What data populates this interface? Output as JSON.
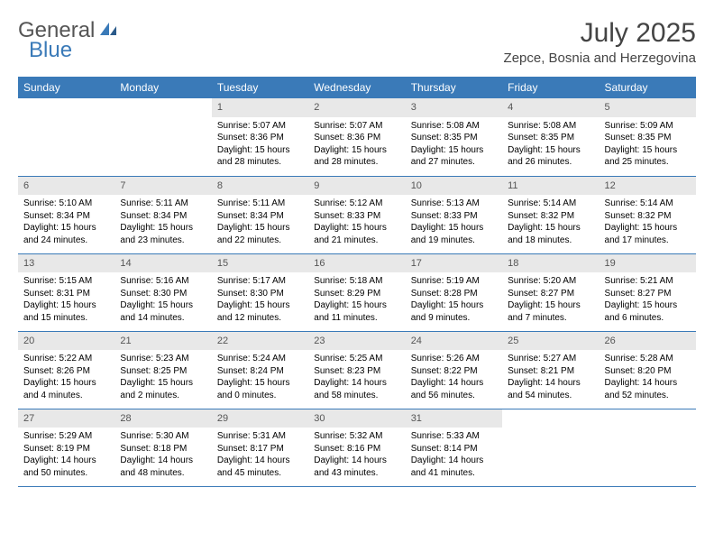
{
  "logo": {
    "text1": "General",
    "text2": "Blue"
  },
  "title": "July 2025",
  "location": "Zepce, Bosnia and Herzegovina",
  "colors": {
    "header_bg": "#3a7ab8",
    "header_text": "#ffffff",
    "daynum_bg": "#e8e8e8",
    "daynum_text": "#555555",
    "logo_gray": "#555555",
    "logo_blue": "#3a7ab8"
  },
  "weekdays": [
    "Sunday",
    "Monday",
    "Tuesday",
    "Wednesday",
    "Thursday",
    "Friday",
    "Saturday"
  ],
  "weeks": [
    [
      {
        "n": "",
        "sr": "",
        "ss": "",
        "dl": ""
      },
      {
        "n": "",
        "sr": "",
        "ss": "",
        "dl": ""
      },
      {
        "n": "1",
        "sr": "Sunrise: 5:07 AM",
        "ss": "Sunset: 8:36 PM",
        "dl": "Daylight: 15 hours and 28 minutes."
      },
      {
        "n": "2",
        "sr": "Sunrise: 5:07 AM",
        "ss": "Sunset: 8:36 PM",
        "dl": "Daylight: 15 hours and 28 minutes."
      },
      {
        "n": "3",
        "sr": "Sunrise: 5:08 AM",
        "ss": "Sunset: 8:35 PM",
        "dl": "Daylight: 15 hours and 27 minutes."
      },
      {
        "n": "4",
        "sr": "Sunrise: 5:08 AM",
        "ss": "Sunset: 8:35 PM",
        "dl": "Daylight: 15 hours and 26 minutes."
      },
      {
        "n": "5",
        "sr": "Sunrise: 5:09 AM",
        "ss": "Sunset: 8:35 PM",
        "dl": "Daylight: 15 hours and 25 minutes."
      }
    ],
    [
      {
        "n": "6",
        "sr": "Sunrise: 5:10 AM",
        "ss": "Sunset: 8:34 PM",
        "dl": "Daylight: 15 hours and 24 minutes."
      },
      {
        "n": "7",
        "sr": "Sunrise: 5:11 AM",
        "ss": "Sunset: 8:34 PM",
        "dl": "Daylight: 15 hours and 23 minutes."
      },
      {
        "n": "8",
        "sr": "Sunrise: 5:11 AM",
        "ss": "Sunset: 8:34 PM",
        "dl": "Daylight: 15 hours and 22 minutes."
      },
      {
        "n": "9",
        "sr": "Sunrise: 5:12 AM",
        "ss": "Sunset: 8:33 PM",
        "dl": "Daylight: 15 hours and 21 minutes."
      },
      {
        "n": "10",
        "sr": "Sunrise: 5:13 AM",
        "ss": "Sunset: 8:33 PM",
        "dl": "Daylight: 15 hours and 19 minutes."
      },
      {
        "n": "11",
        "sr": "Sunrise: 5:14 AM",
        "ss": "Sunset: 8:32 PM",
        "dl": "Daylight: 15 hours and 18 minutes."
      },
      {
        "n": "12",
        "sr": "Sunrise: 5:14 AM",
        "ss": "Sunset: 8:32 PM",
        "dl": "Daylight: 15 hours and 17 minutes."
      }
    ],
    [
      {
        "n": "13",
        "sr": "Sunrise: 5:15 AM",
        "ss": "Sunset: 8:31 PM",
        "dl": "Daylight: 15 hours and 15 minutes."
      },
      {
        "n": "14",
        "sr": "Sunrise: 5:16 AM",
        "ss": "Sunset: 8:30 PM",
        "dl": "Daylight: 15 hours and 14 minutes."
      },
      {
        "n": "15",
        "sr": "Sunrise: 5:17 AM",
        "ss": "Sunset: 8:30 PM",
        "dl": "Daylight: 15 hours and 12 minutes."
      },
      {
        "n": "16",
        "sr": "Sunrise: 5:18 AM",
        "ss": "Sunset: 8:29 PM",
        "dl": "Daylight: 15 hours and 11 minutes."
      },
      {
        "n": "17",
        "sr": "Sunrise: 5:19 AM",
        "ss": "Sunset: 8:28 PM",
        "dl": "Daylight: 15 hours and 9 minutes."
      },
      {
        "n": "18",
        "sr": "Sunrise: 5:20 AM",
        "ss": "Sunset: 8:27 PM",
        "dl": "Daylight: 15 hours and 7 minutes."
      },
      {
        "n": "19",
        "sr": "Sunrise: 5:21 AM",
        "ss": "Sunset: 8:27 PM",
        "dl": "Daylight: 15 hours and 6 minutes."
      }
    ],
    [
      {
        "n": "20",
        "sr": "Sunrise: 5:22 AM",
        "ss": "Sunset: 8:26 PM",
        "dl": "Daylight: 15 hours and 4 minutes."
      },
      {
        "n": "21",
        "sr": "Sunrise: 5:23 AM",
        "ss": "Sunset: 8:25 PM",
        "dl": "Daylight: 15 hours and 2 minutes."
      },
      {
        "n": "22",
        "sr": "Sunrise: 5:24 AM",
        "ss": "Sunset: 8:24 PM",
        "dl": "Daylight: 15 hours and 0 minutes."
      },
      {
        "n": "23",
        "sr": "Sunrise: 5:25 AM",
        "ss": "Sunset: 8:23 PM",
        "dl": "Daylight: 14 hours and 58 minutes."
      },
      {
        "n": "24",
        "sr": "Sunrise: 5:26 AM",
        "ss": "Sunset: 8:22 PM",
        "dl": "Daylight: 14 hours and 56 minutes."
      },
      {
        "n": "25",
        "sr": "Sunrise: 5:27 AM",
        "ss": "Sunset: 8:21 PM",
        "dl": "Daylight: 14 hours and 54 minutes."
      },
      {
        "n": "26",
        "sr": "Sunrise: 5:28 AM",
        "ss": "Sunset: 8:20 PM",
        "dl": "Daylight: 14 hours and 52 minutes."
      }
    ],
    [
      {
        "n": "27",
        "sr": "Sunrise: 5:29 AM",
        "ss": "Sunset: 8:19 PM",
        "dl": "Daylight: 14 hours and 50 minutes."
      },
      {
        "n": "28",
        "sr": "Sunrise: 5:30 AM",
        "ss": "Sunset: 8:18 PM",
        "dl": "Daylight: 14 hours and 48 minutes."
      },
      {
        "n": "29",
        "sr": "Sunrise: 5:31 AM",
        "ss": "Sunset: 8:17 PM",
        "dl": "Daylight: 14 hours and 45 minutes."
      },
      {
        "n": "30",
        "sr": "Sunrise: 5:32 AM",
        "ss": "Sunset: 8:16 PM",
        "dl": "Daylight: 14 hours and 43 minutes."
      },
      {
        "n": "31",
        "sr": "Sunrise: 5:33 AM",
        "ss": "Sunset: 8:14 PM",
        "dl": "Daylight: 14 hours and 41 minutes."
      },
      {
        "n": "",
        "sr": "",
        "ss": "",
        "dl": ""
      },
      {
        "n": "",
        "sr": "",
        "ss": "",
        "dl": ""
      }
    ]
  ]
}
